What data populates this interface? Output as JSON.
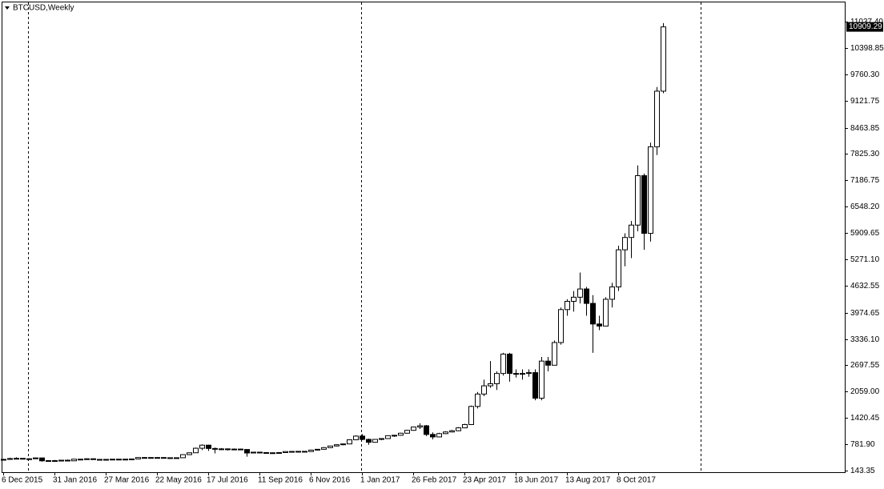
{
  "chart_data": {
    "type": "candlestick",
    "title": "BTCUSD,Weekly",
    "current_price": 10909.29,
    "categories": [
      "6 Dec 2015",
      null,
      null,
      null,
      null,
      null,
      null,
      null,
      "31 Jan 2016",
      null,
      null,
      null,
      null,
      null,
      null,
      null,
      "27 Mar 2016",
      null,
      null,
      null,
      null,
      null,
      null,
      null,
      "22 May 2016",
      null,
      null,
      null,
      null,
      null,
      null,
      null,
      "17 Jul 2016",
      null,
      null,
      null,
      null,
      null,
      null,
      null,
      "11 Sep 2016",
      null,
      null,
      null,
      null,
      null,
      null,
      null,
      "6 Nov 2016",
      null,
      null,
      null,
      null,
      null,
      null,
      null,
      "1 Jan 2017",
      null,
      null,
      null,
      null,
      null,
      null,
      null,
      "26 Feb 2017",
      null,
      null,
      null,
      null,
      null,
      null,
      null,
      "23 Apr 2017",
      null,
      null,
      null,
      null,
      null,
      null,
      null,
      "18 Jun 2017",
      null,
      null,
      null,
      null,
      null,
      null,
      null,
      "13 Aug 2017",
      null,
      null,
      null,
      null,
      null,
      null,
      null,
      "8 Oct 2017",
      null,
      null,
      null,
      null,
      null,
      null,
      null
    ],
    "open": [
      400,
      415,
      435,
      440,
      425,
      430,
      450,
      380,
      385,
      375,
      395,
      380,
      420,
      410,
      430,
      410,
      415,
      415,
      420,
      420,
      420,
      425,
      460,
      460,
      450,
      460,
      455,
      445,
      455,
      530,
      575,
      685,
      760,
      680,
      660,
      670,
      650,
      665,
      655,
      570,
      590,
      580,
      575,
      575,
      580,
      605,
      608,
      610,
      605,
      640,
      660,
      700,
      740,
      770,
      790,
      890,
      980,
      900,
      830,
      900,
      920,
      990,
      1000,
      1050,
      1120,
      1200,
      1230,
      1020,
      960,
      1040,
      1080,
      1110,
      1180,
      1260,
      1700,
      2000,
      2200,
      2250,
      2500,
      2970,
      2500,
      2480,
      2500,
      2520,
      1900,
      2800,
      2700,
      3250,
      4050,
      4250,
      4350,
      4550,
      4200,
      3700,
      3650,
      4300,
      4600,
      5500,
      5800,
      6100,
      7300,
      5900,
      8000,
      9350
    ],
    "high": [
      430,
      455,
      465,
      445,
      440,
      460,
      455,
      395,
      400,
      400,
      410,
      425,
      425,
      440,
      440,
      420,
      420,
      425,
      425,
      428,
      430,
      465,
      470,
      462,
      465,
      465,
      458,
      460,
      540,
      580,
      700,
      780,
      770,
      700,
      690,
      680,
      680,
      675,
      660,
      600,
      595,
      590,
      585,
      590,
      610,
      615,
      615,
      615,
      650,
      665,
      710,
      745,
      780,
      795,
      900,
      1000,
      1030,
      920,
      910,
      930,
      1000,
      1010,
      1060,
      1130,
      1210,
      1290,
      1250,
      1070,
      1060,
      1100,
      1130,
      1200,
      1280,
      1720,
      2050,
      2350,
      2800,
      2550,
      3000,
      3000,
      2600,
      2600,
      2600,
      2600,
      2900,
      2900,
      3300,
      4100,
      4300,
      4500,
      4950,
      4600,
      4400,
      3900,
      4350,
      4700,
      5600,
      5900,
      6200,
      7550,
      7350,
      8100,
      9450,
      11000
    ],
    "low": [
      390,
      410,
      420,
      415,
      415,
      425,
      360,
      365,
      370,
      370,
      370,
      375,
      400,
      405,
      405,
      405,
      410,
      410,
      415,
      415,
      418,
      422,
      450,
      440,
      445,
      448,
      438,
      440,
      450,
      520,
      570,
      640,
      620,
      560,
      640,
      630,
      640,
      640,
      480,
      560,
      565,
      565,
      565,
      570,
      575,
      600,
      600,
      595,
      600,
      635,
      655,
      690,
      730,
      760,
      785,
      880,
      880,
      770,
      820,
      880,
      910,
      960,
      990,
      1040,
      1110,
      1150,
      980,
      900,
      950,
      1030,
      1070,
      1100,
      1170,
      1250,
      1650,
      1950,
      2150,
      2100,
      2450,
      2300,
      2400,
      2350,
      2420,
      1850,
      1850,
      2550,
      2700,
      3200,
      3900,
      4000,
      4200,
      3900,
      3000,
      3550,
      3650,
      4100,
      4500,
      5100,
      5300,
      5950,
      5500,
      5700,
      7800,
      9300
    ],
    "close": [
      415,
      435,
      440,
      425,
      430,
      450,
      380,
      385,
      375,
      395,
      380,
      420,
      410,
      430,
      410,
      415,
      415,
      420,
      420,
      420,
      425,
      460,
      460,
      450,
      460,
      455,
      445,
      455,
      530,
      575,
      685,
      760,
      680,
      660,
      670,
      650,
      665,
      655,
      570,
      590,
      580,
      575,
      575,
      580,
      605,
      608,
      610,
      605,
      640,
      660,
      700,
      740,
      770,
      790,
      890,
      980,
      900,
      830,
      900,
      920,
      990,
      1000,
      1050,
      1120,
      1200,
      1230,
      1020,
      960,
      1040,
      1080,
      1110,
      1180,
      1260,
      1700,
      2000,
      2200,
      2250,
      2500,
      2970,
      2500,
      2480,
      2500,
      2520,
      1900,
      2800,
      2700,
      3250,
      4050,
      4250,
      4350,
      4550,
      4200,
      3700,
      3650,
      4300,
      4600,
      5500,
      5800,
      6100,
      7300,
      5900,
      8000,
      9350,
      10909.29
    ],
    "up_color": "#ffffff",
    "down_color": "#000000",
    "ylim": [
      104,
      11523
    ],
    "yticks": [
      {
        "value": 143.35,
        "label": "143.35"
      },
      {
        "value": 781.9,
        "label": "781.90"
      },
      {
        "value": 1420.45,
        "label": "1420.45"
      },
      {
        "value": 2059,
        "label": "2059.00"
      },
      {
        "value": 2697.55,
        "label": "2697.55"
      },
      {
        "value": 3336.1,
        "label": "3336.10"
      },
      {
        "value": 3974.65,
        "label": "3974.65"
      },
      {
        "value": 4632.55,
        "label": "4632.55"
      },
      {
        "value": 5271.1,
        "label": "5271.10"
      },
      {
        "value": 5909.65,
        "label": "5909.65"
      },
      {
        "value": 6548.2,
        "label": "6548.20"
      },
      {
        "value": 7186.75,
        "label": "7186.75"
      },
      {
        "value": 7825.3,
        "label": "7825.30"
      },
      {
        "value": 8463.85,
        "label": "8463.85"
      },
      {
        "value": 9121.75,
        "label": "9121.75"
      },
      {
        "value": 9760.3,
        "label": "9760.30"
      },
      {
        "value": 10398.85,
        "label": "10398.85"
      },
      {
        "value": 11037.4,
        "label": "11037.40"
      }
    ]
  }
}
